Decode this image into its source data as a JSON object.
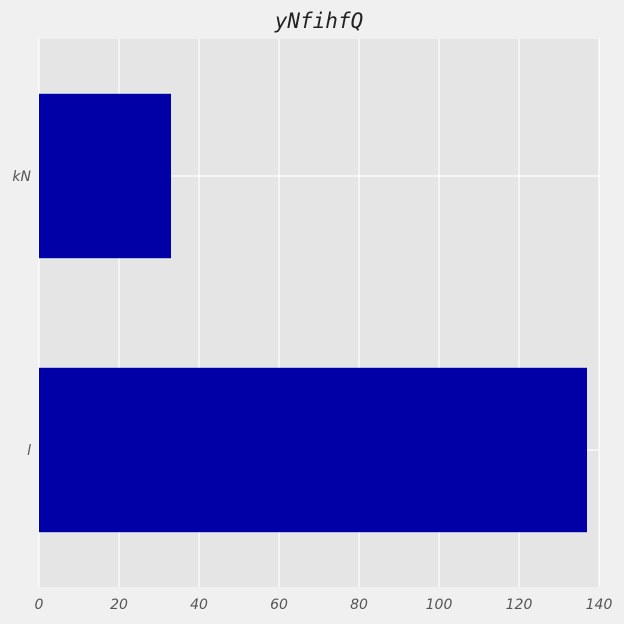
{
  "chart_data": {
    "type": "bar",
    "orientation": "horizontal",
    "title": "yNfihfQ",
    "xlabel": "",
    "ylabel": "",
    "categories": [
      "l",
      "kN"
    ],
    "values": [
      137,
      33
    ],
    "xlim": [
      0,
      140
    ],
    "x_ticks": [
      0,
      20,
      40,
      60,
      80,
      100,
      120,
      140
    ],
    "x_tick_labels": [
      "0",
      "20",
      "40",
      "60",
      "80",
      "100",
      "120",
      "140"
    ],
    "grid": true,
    "legend": "none",
    "colors": {
      "bar": "#0000a6",
      "plot_background": "#e5e5e5",
      "figure_background": "#f0f0f0",
      "grid": "#ffffff"
    }
  }
}
